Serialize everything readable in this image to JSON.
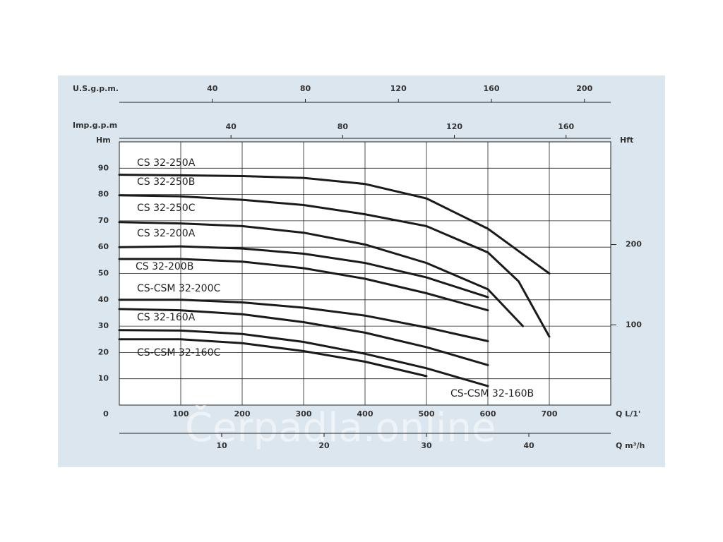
{
  "chart_data": {
    "type": "line",
    "xlabel": "Q L/1'",
    "ylabel": "Hm",
    "y2label": "Hft",
    "xlim": [
      0,
      800
    ],
    "xticks": [
      0,
      100,
      200,
      300,
      400,
      500,
      600,
      700
    ],
    "ylim": [
      0,
      100
    ],
    "yticks": [
      10,
      20,
      30,
      40,
      50,
      60,
      70,
      80,
      90
    ],
    "y2lim": [
      0,
      328
    ],
    "y2ticks": [
      100,
      200
    ],
    "grid": true,
    "color": "#1a1a1a",
    "top_axes": [
      {
        "label": "U.S.g.p.m.",
        "lim": [
          0,
          211.3
        ],
        "ticks": [
          40,
          80,
          120,
          160,
          200
        ]
      },
      {
        "label": "Imp.g.p.m",
        "lim": [
          0,
          176
        ],
        "ticks": [
          40,
          80,
          120,
          160
        ]
      }
    ],
    "bottom_axis": {
      "label": "Q m³/h",
      "lim": [
        0,
        48
      ],
      "ticks": [
        10,
        20,
        30,
        40
      ]
    },
    "watermark": "Čerpadla.online",
    "series": [
      {
        "name": "CS 32-250A",
        "x": [
          0,
          100,
          200,
          300,
          400,
          500,
          600,
          700
        ],
        "values": [
          87.5,
          87.3,
          87,
          86.3,
          84,
          78.5,
          67,
          50
        ]
      },
      {
        "name": "CS 32-250B",
        "x": [
          0,
          100,
          200,
          300,
          400,
          500,
          600,
          650,
          700
        ],
        "values": [
          79.7,
          79.3,
          78,
          76,
          72.5,
          68,
          58,
          47,
          26
        ]
      },
      {
        "name": "CS 32-250C",
        "x": [
          0,
          100,
          200,
          300,
          400,
          500,
          600,
          657
        ],
        "values": [
          69.5,
          69,
          68,
          65.5,
          61,
          54,
          44,
          30
        ]
      },
      {
        "name": "CS 32-200A",
        "x": [
          0,
          100,
          200,
          300,
          400,
          500,
          600
        ],
        "values": [
          60,
          60.3,
          59.5,
          57.5,
          54,
          48.5,
          41
        ]
      },
      {
        "name": "CS 32-200B",
        "x": [
          0,
          100,
          200,
          300,
          400,
          500,
          600
        ],
        "values": [
          55.5,
          55.5,
          54.5,
          52,
          48,
          42.5,
          36
        ]
      },
      {
        "name": "CS-CSM 32-200C",
        "x": [
          0,
          100,
          200,
          300,
          400,
          500,
          600
        ],
        "values": [
          40,
          40,
          39,
          37,
          34,
          29.5,
          24.3
        ]
      },
      {
        "name": "CS 32-160A",
        "x": [
          0,
          100,
          200,
          300,
          400,
          500,
          600
        ],
        "values": [
          36.5,
          36,
          34.5,
          31.5,
          27.5,
          22,
          15.2
        ]
      },
      {
        "name": "CS-CSM 32-160B",
        "x": [
          0,
          100,
          200,
          300,
          400,
          500,
          600
        ],
        "values": [
          28.5,
          28.3,
          27,
          24,
          19.5,
          14,
          7.2
        ]
      },
      {
        "name": "CS-CSM 32-160C",
        "x": [
          0,
          100,
          200,
          300,
          400,
          500
        ],
        "values": [
          25,
          25,
          23.5,
          20.5,
          16.5,
          11
        ]
      }
    ]
  }
}
